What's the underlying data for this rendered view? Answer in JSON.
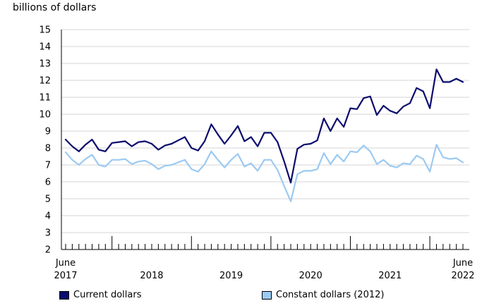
{
  "chart_data": {
    "type": "line",
    "ylabel": "billions of dollars",
    "ylim": [
      2,
      15
    ],
    "yticks": [
      2,
      3,
      4,
      5,
      6,
      7,
      8,
      9,
      10,
      11,
      12,
      13,
      14,
      15
    ],
    "x_start": "2017-06",
    "x_end": "2022-06",
    "x_labels": [
      {
        "month": "2017-06",
        "top": "June",
        "bottom": "2017"
      },
      {
        "month": "2018-07",
        "top": "",
        "bottom": "2018"
      },
      {
        "month": "2019-07",
        "top": "",
        "bottom": "2019"
      },
      {
        "month": "2020-07",
        "top": "",
        "bottom": "2020"
      },
      {
        "month": "2021-07",
        "top": "",
        "bottom": "2021"
      },
      {
        "month": "2022-06",
        "top": "June",
        "bottom": "2022"
      }
    ],
    "year_boundaries": [
      "2018-01",
      "2019-01",
      "2020-01",
      "2021-01",
      "2022-01"
    ],
    "grid": true,
    "legend_position": "bottom",
    "series": [
      {
        "name": "Current dollars",
        "color": "#0b0b6e",
        "values": [
          8.5,
          8.1,
          7.8,
          8.2,
          8.5,
          7.9,
          7.8,
          8.3,
          8.35,
          8.4,
          8.1,
          8.35,
          8.4,
          8.25,
          7.9,
          8.15,
          8.25,
          8.45,
          8.65,
          8.0,
          7.85,
          8.4,
          9.4,
          8.8,
          8.25,
          8.75,
          9.3,
          8.4,
          8.65,
          8.1,
          8.9,
          8.9,
          8.35,
          7.2,
          5.95,
          7.95,
          8.2,
          8.25,
          8.45,
          9.75,
          9.0,
          9.75,
          9.25,
          10.35,
          10.3,
          10.95,
          11.05,
          9.95,
          10.5,
          10.2,
          10.05,
          10.45,
          10.65,
          11.55,
          11.35,
          10.35,
          12.65,
          11.9,
          11.9,
          12.1,
          11.9
        ]
      },
      {
        "name": "Constant dollars (2012)",
        "color": "#9ccaf2",
        "values": [
          7.75,
          7.3,
          7.0,
          7.35,
          7.6,
          7.0,
          6.9,
          7.3,
          7.3,
          7.35,
          7.05,
          7.2,
          7.25,
          7.05,
          6.75,
          6.95,
          7.0,
          7.15,
          7.3,
          6.75,
          6.6,
          7.05,
          7.8,
          7.3,
          6.85,
          7.3,
          7.65,
          6.9,
          7.1,
          6.65,
          7.3,
          7.3,
          6.7,
          5.75,
          4.85,
          6.45,
          6.65,
          6.65,
          6.75,
          7.7,
          7.05,
          7.6,
          7.2,
          7.8,
          7.75,
          8.15,
          7.8,
          7.05,
          7.3,
          6.95,
          6.85,
          7.1,
          7.05,
          7.55,
          7.35,
          6.6,
          8.2,
          7.45,
          7.35,
          7.4,
          7.15
        ]
      }
    ]
  }
}
